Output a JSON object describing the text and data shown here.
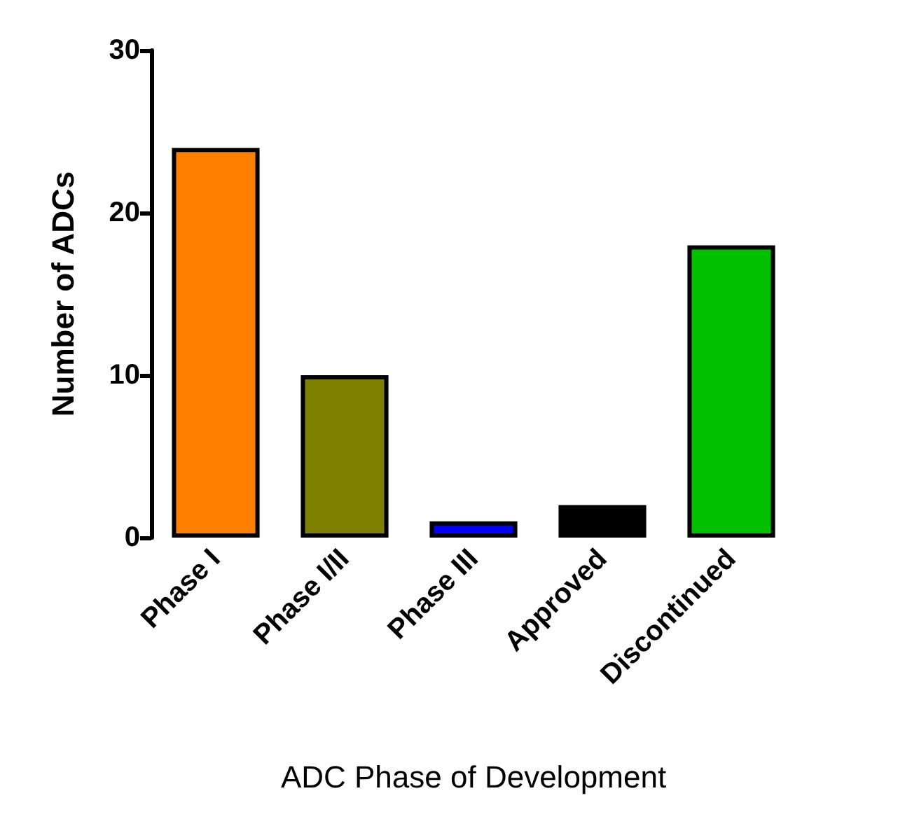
{
  "chart_data": {
    "type": "bar",
    "xlabel": "ADC Phase of Development",
    "ylabel": "Number of ADCs",
    "categories": [
      "Phase I",
      "Phase I/II",
      "Phase III",
      "Approved",
      "Discontinued"
    ],
    "values": [
      24,
      10,
      1,
      2,
      18
    ],
    "colors": [
      "#ff8000",
      "#808000",
      "#0000ff",
      "#000000",
      "#00c000"
    ],
    "ylim": [
      0,
      30
    ],
    "yticks": [
      0,
      10,
      20,
      30
    ],
    "grid": false
  }
}
